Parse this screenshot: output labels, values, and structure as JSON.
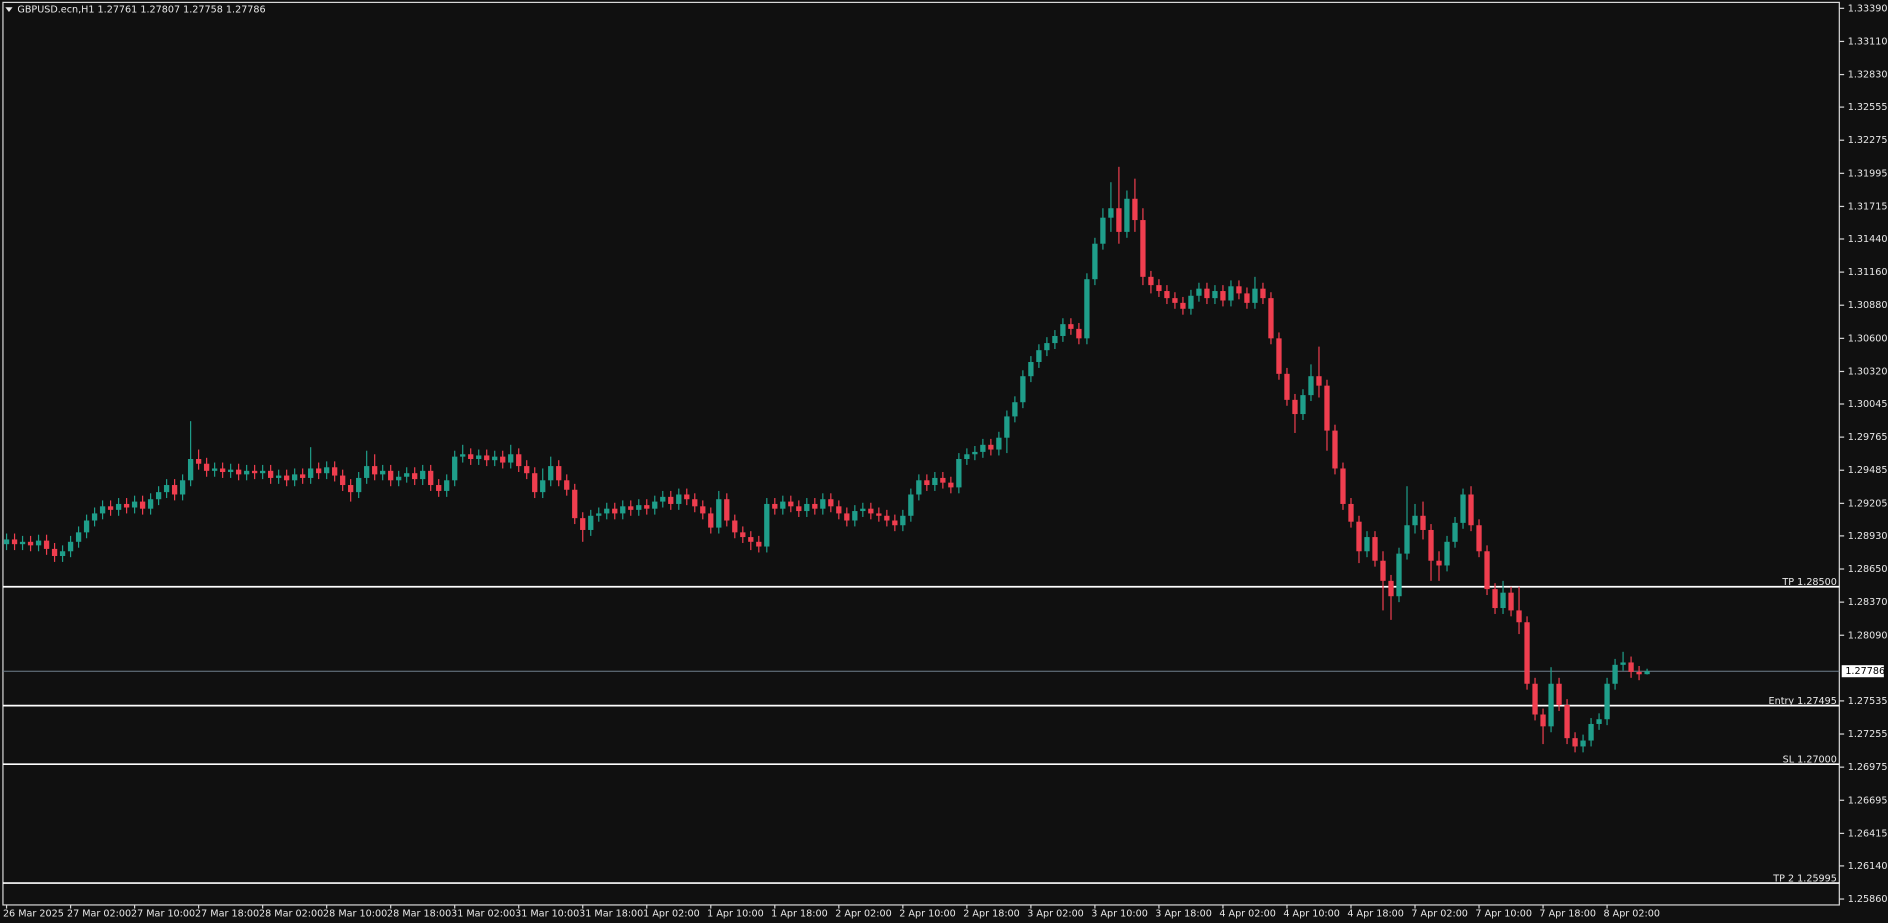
{
  "chart_data": {
    "type": "candlestick",
    "title": "GBPUSD.ecn,H1  1.27761 1.27807 1.27758 1.27786",
    "categories": [
      "26 Mar 2025",
      null,
      null,
      null,
      null,
      null,
      null,
      null,
      "27 Mar 02:00",
      null,
      null,
      null,
      null,
      null,
      null,
      null,
      "27 Mar 10:00",
      null,
      null,
      null,
      null,
      null,
      null,
      null,
      "27 Mar 18:00",
      null,
      null,
      null,
      null,
      null,
      null,
      null,
      "28 Mar 02:00",
      null,
      null,
      null,
      null,
      null,
      null,
      null,
      "28 Mar 10:00",
      null,
      null,
      null,
      null,
      null,
      null,
      null,
      "28 Mar 18:00",
      null,
      null,
      null,
      null,
      null,
      null,
      null,
      "31 Mar 02:00",
      null,
      null,
      null,
      null,
      null,
      null,
      null,
      "31 Mar 10:00",
      null,
      null,
      null,
      null,
      null,
      null,
      null,
      "31 Mar 18:00",
      null,
      null,
      null,
      null,
      null,
      null,
      null,
      "1 Apr 02:00",
      null,
      null,
      null,
      null,
      null,
      null,
      null,
      "1 Apr 10:00",
      null,
      null,
      null,
      null,
      null,
      null,
      null,
      "1 Apr 18:00",
      null,
      null,
      null,
      null,
      null,
      null,
      null,
      "2 Apr 02:00",
      null,
      null,
      null,
      null,
      null,
      null,
      null,
      "2 Apr 10:00",
      null,
      null,
      null,
      null,
      null,
      null,
      null,
      "2 Apr 18:00",
      null,
      null,
      null,
      null,
      null,
      null,
      null,
      "3 Apr 02:00",
      null,
      null,
      null,
      null,
      null,
      null,
      null,
      "3 Apr 10:00",
      null,
      null,
      null,
      null,
      null,
      null,
      null,
      "3 Apr 18:00",
      null,
      null,
      null,
      null,
      null,
      null,
      null,
      "4 Apr 02:00",
      null,
      null,
      null,
      null,
      null,
      null,
      null,
      "4 Apr 10:00",
      null,
      null,
      null,
      null,
      null,
      null,
      null,
      "4 Apr 18:00",
      null,
      null,
      null,
      null,
      null,
      null,
      null,
      "7 Apr 02:00",
      null,
      null,
      null,
      null,
      null,
      null,
      null,
      "7 Apr 10:00",
      null,
      null,
      null,
      null,
      null,
      null,
      null,
      "7 Apr 18:00",
      null,
      null,
      null,
      null,
      null,
      null,
      null,
      "8 Apr 02:00",
      null,
      null,
      null,
      null,
      null
    ],
    "open": [
      1.2886,
      1.289,
      1.2886,
      1.2888,
      1.2885,
      1.2889,
      1.2882,
      1.2876,
      1.288,
      1.2888,
      1.2896,
      1.2906,
      1.2912,
      1.2918,
      1.2915,
      1.292,
      1.2917,
      1.2922,
      1.2916,
      1.2924,
      1.293,
      1.2936,
      1.2928,
      1.294,
      1.2958,
      1.2954,
      1.2948,
      1.295,
      1.2947,
      1.2949,
      1.2945,
      1.2948,
      1.2946,
      1.2948,
      1.2942,
      1.2944,
      1.294,
      1.2945,
      1.2942,
      1.295,
      1.2946,
      1.2951,
      1.2944,
      1.2936,
      1.293,
      1.2942,
      1.2952,
      1.2945,
      1.2948,
      1.294,
      1.2943,
      1.2946,
      1.2941,
      1.2948,
      1.2936,
      1.2931,
      1.294,
      1.296,
      1.2962,
      1.2958,
      1.2961,
      1.2957,
      1.296,
      1.2955,
      1.2962,
      1.2952,
      1.2946,
      1.293,
      1.294,
      1.2952,
      1.294,
      1.2932,
      1.2908,
      1.2898,
      1.291,
      1.2912,
      1.2916,
      1.2912,
      1.2918,
      1.2915,
      1.2919,
      1.2916,
      1.2922,
      1.2926,
      1.292,
      1.2928,
      1.2924,
      1.2918,
      1.2912,
      1.29,
      1.2924,
      1.2906,
      1.2896,
      1.2892,
      1.2888,
      1.2884,
      1.292,
      1.2916,
      1.2922,
      1.2918,
      1.2914,
      1.292,
      1.2916,
      1.2924,
      1.2918,
      1.2912,
      1.2906,
      1.2914,
      1.2916,
      1.2912,
      1.291,
      1.2906,
      1.2902,
      1.291,
      1.2928,
      1.294,
      1.2936,
      1.2942,
      1.2938,
      1.2934,
      1.2958,
      1.2962,
      1.2964,
      1.297,
      1.2966,
      1.2976,
      1.2994,
      1.3006,
      1.3028,
      1.304,
      1.305,
      1.3056,
      1.3062,
      1.3072,
      1.3068,
      1.306,
      1.311,
      1.314,
      1.3162,
      1.317,
      1.315,
      1.3178,
      1.316,
      1.3112,
      1.3105,
      1.31,
      1.3094,
      1.309,
      1.3085,
      1.3096,
      1.3102,
      1.3094,
      1.31,
      1.3092,
      1.3104,
      1.3098,
      1.309,
      1.3102,
      1.3094,
      1.306,
      1.303,
      1.3008,
      1.2996,
      1.3012,
      1.3028,
      1.302,
      1.2982,
      1.295,
      1.292,
      1.2905,
      1.288,
      1.2892,
      1.2872,
      1.2855,
      1.2842,
      1.2878,
      1.2902,
      1.291,
      1.2898,
      1.2872,
      1.2868,
      1.2888,
      1.2904,
      1.2928,
      1.2902,
      1.288,
      1.2848,
      1.2832,
      1.2845,
      1.283,
      1.282,
      1.2768,
      1.2742,
      1.2732,
      1.2768,
      1.275,
      1.2722,
      1.2715,
      1.272,
      1.2734,
      1.2738,
      1.2768,
      1.2784,
      1.2786,
      1.2778,
      1.27761
    ],
    "high": [
      1.2895,
      1.2895,
      1.2893,
      1.2893,
      1.2894,
      1.2894,
      1.2887,
      1.2885,
      1.2893,
      1.2901,
      1.2911,
      1.2917,
      1.2923,
      1.2923,
      1.2925,
      1.2925,
      1.2927,
      1.2927,
      1.2929,
      1.2935,
      1.2941,
      1.2941,
      1.2945,
      1.299,
      1.2966,
      1.2959,
      1.2955,
      1.2955,
      1.2954,
      1.2954,
      1.2953,
      1.2953,
      1.2953,
      1.2953,
      1.2949,
      1.2949,
      1.295,
      1.295,
      1.2968,
      1.2955,
      1.2956,
      1.2956,
      1.2949,
      1.2941,
      1.2947,
      1.2965,
      1.2962,
      1.2953,
      1.2953,
      1.2948,
      1.2951,
      1.2951,
      1.2953,
      1.2953,
      1.2941,
      1.2945,
      1.2965,
      1.297,
      1.2967,
      1.2966,
      1.2966,
      1.2965,
      1.2965,
      1.297,
      1.2967,
      1.2957,
      1.2951,
      1.295,
      1.296,
      1.2957,
      1.2945,
      1.2937,
      1.2913,
      1.2915,
      1.2917,
      1.2921,
      1.2921,
      1.2923,
      1.2923,
      1.2924,
      1.2924,
      1.2927,
      1.2931,
      1.2931,
      1.2933,
      1.2933,
      1.2929,
      1.2923,
      1.2917,
      1.2931,
      1.2929,
      1.2911,
      1.2901,
      1.2897,
      1.2893,
      1.2925,
      1.2925,
      1.2927,
      1.2927,
      1.2923,
      1.2925,
      1.2925,
      1.2929,
      1.2929,
      1.2923,
      1.2917,
      1.2919,
      1.2921,
      1.2921,
      1.2917,
      1.2915,
      1.2911,
      1.2915,
      1.2933,
      1.2945,
      1.2945,
      1.2947,
      1.2947,
      1.2943,
      1.2963,
      1.2967,
      1.2969,
      1.2975,
      1.2975,
      1.2981,
      1.2999,
      1.3011,
      1.3033,
      1.3045,
      1.3055,
      1.3061,
      1.3067,
      1.3077,
      1.3077,
      1.3073,
      1.3115,
      1.3145,
      1.317,
      1.3192,
      1.3205,
      1.3185,
      1.3195,
      1.317,
      1.3117,
      1.311,
      1.3105,
      1.3099,
      1.3095,
      1.3101,
      1.3107,
      1.3107,
      1.3105,
      1.3105,
      1.3109,
      1.3109,
      1.3103,
      1.3112,
      1.3107,
      1.3099,
      1.3065,
      1.3035,
      1.3013,
      1.3017,
      1.3038,
      1.3053,
      1.3025,
      1.2987,
      1.2955,
      1.2925,
      1.291,
      1.2897,
      1.2897,
      1.288,
      1.286,
      1.2883,
      1.2935,
      1.292,
      1.2922,
      1.2903,
      1.288,
      1.2893,
      1.2909,
      1.2933,
      1.2935,
      1.2907,
      1.2885,
      1.2853,
      1.2855,
      1.285,
      1.285,
      1.2825,
      1.2773,
      1.2747,
      1.2782,
      1.2773,
      1.2755,
      1.2727,
      1.2725,
      1.2739,
      1.2743,
      1.2773,
      1.2789,
      1.2795,
      1.2791,
      1.2783,
      1.27807
    ],
    "low": [
      1.2881,
      1.2881,
      1.2881,
      1.288,
      1.288,
      1.2877,
      1.2871,
      1.2871,
      1.2875,
      1.2883,
      1.2891,
      1.2901,
      1.2907,
      1.291,
      1.291,
      1.2912,
      1.2912,
      1.2911,
      1.2911,
      1.2919,
      1.2925,
      1.2923,
      1.2923,
      1.2935,
      1.2949,
      1.2943,
      1.2943,
      1.2942,
      1.2942,
      1.294,
      1.294,
      1.2941,
      1.2941,
      1.2937,
      1.2937,
      1.2935,
      1.2935,
      1.2937,
      1.2937,
      1.2941,
      1.2941,
      1.2939,
      1.2931,
      1.2922,
      1.2925,
      1.2937,
      1.294,
      1.294,
      1.2935,
      1.2935,
      1.2938,
      1.2936,
      1.2936,
      1.2931,
      1.2926,
      1.2926,
      1.2935,
      1.2955,
      1.2953,
      1.2953,
      1.2952,
      1.2952,
      1.295,
      1.295,
      1.2947,
      1.2941,
      1.2925,
      1.2925,
      1.2935,
      1.2935,
      1.2927,
      1.2903,
      1.2888,
      1.2893,
      1.2905,
      1.2907,
      1.2907,
      1.2907,
      1.291,
      1.291,
      1.2911,
      1.2911,
      1.2917,
      1.2915,
      1.2915,
      1.2919,
      1.2913,
      1.2907,
      1.2895,
      1.2895,
      1.2901,
      1.2891,
      1.2887,
      1.2881,
      1.2879,
      1.2879,
      1.2911,
      1.2911,
      1.2913,
      1.2909,
      1.2909,
      1.2911,
      1.2911,
      1.2913,
      1.2907,
      1.2901,
      1.2901,
      1.2909,
      1.2907,
      1.2905,
      1.2901,
      1.2897,
      1.2897,
      1.2905,
      1.2923,
      1.2931,
      1.2931,
      1.2933,
      1.2929,
      1.2929,
      1.2953,
      1.2957,
      1.2959,
      1.2961,
      1.2961,
      1.2963,
      1.2989,
      1.3001,
      1.3023,
      1.3035,
      1.3045,
      1.3051,
      1.3057,
      1.3063,
      1.3055,
      1.3055,
      1.3105,
      1.3135,
      1.315,
      1.314,
      1.3145,
      1.315,
      1.3105,
      1.3098,
      1.3095,
      1.3089,
      1.3085,
      1.308,
      1.308,
      1.3091,
      1.3089,
      1.3089,
      1.3087,
      1.3087,
      1.3093,
      1.3085,
      1.3085,
      1.3089,
      1.3055,
      1.3025,
      1.3003,
      1.298,
      1.2991,
      1.3007,
      1.301,
      1.2965,
      1.2945,
      1.2915,
      1.29,
      1.287,
      1.2875,
      1.2867,
      1.283,
      1.2822,
      1.2837,
      1.2873,
      1.2895,
      1.289,
      1.2855,
      1.2855,
      1.2863,
      1.2883,
      1.2899,
      1.2897,
      1.2875,
      1.2843,
      1.2827,
      1.2827,
      1.2825,
      1.281,
      1.2763,
      1.2737,
      1.2717,
      1.2727,
      1.2745,
      1.2717,
      1.271,
      1.271,
      1.2715,
      1.2729,
      1.2733,
      1.2763,
      1.2779,
      1.2773,
      1.2771,
      1.27758
    ],
    "close": [
      1.289,
      1.2886,
      1.2888,
      1.2885,
      1.2889,
      1.2882,
      1.2876,
      1.288,
      1.2888,
      1.2896,
      1.2906,
      1.2912,
      1.2918,
      1.2915,
      1.292,
      1.2917,
      1.2922,
      1.2916,
      1.2924,
      1.293,
      1.2936,
      1.2928,
      1.294,
      1.2958,
      1.2954,
      1.2948,
      1.295,
      1.2947,
      1.2949,
      1.2945,
      1.2948,
      1.2946,
      1.2948,
      1.2942,
      1.2944,
      1.294,
      1.2945,
      1.2942,
      1.295,
      1.2946,
      1.2951,
      1.2944,
      1.2936,
      1.293,
      1.2942,
      1.2952,
      1.2945,
      1.2948,
      1.294,
      1.2943,
      1.2946,
      1.2941,
      1.2948,
      1.2936,
      1.2931,
      1.294,
      1.296,
      1.2962,
      1.2958,
      1.2961,
      1.2957,
      1.296,
      1.2955,
      1.2962,
      1.2952,
      1.2946,
      1.293,
      1.294,
      1.2952,
      1.294,
      1.2932,
      1.2908,
      1.2898,
      1.291,
      1.2912,
      1.2916,
      1.2912,
      1.2918,
      1.2915,
      1.2919,
      1.2916,
      1.2922,
      1.2926,
      1.292,
      1.2928,
      1.2924,
      1.2918,
      1.2912,
      1.29,
      1.2924,
      1.2906,
      1.2896,
      1.2892,
      1.2888,
      1.2884,
      1.292,
      1.2916,
      1.2922,
      1.2918,
      1.2914,
      1.292,
      1.2916,
      1.2924,
      1.2918,
      1.2912,
      1.2906,
      1.2914,
      1.2916,
      1.2912,
      1.291,
      1.2906,
      1.2902,
      1.291,
      1.2928,
      1.294,
      1.2936,
      1.2942,
      1.2938,
      1.2934,
      1.2958,
      1.2962,
      1.2964,
      1.297,
      1.2966,
      1.2976,
      1.2994,
      1.3006,
      1.3028,
      1.304,
      1.305,
      1.3056,
      1.3062,
      1.3072,
      1.3068,
      1.306,
      1.311,
      1.314,
      1.3162,
      1.317,
      1.315,
      1.3178,
      1.316,
      1.3112,
      1.3105,
      1.31,
      1.3094,
      1.309,
      1.3085,
      1.3096,
      1.3102,
      1.3094,
      1.31,
      1.3092,
      1.3104,
      1.3098,
      1.309,
      1.3102,
      1.3094,
      1.306,
      1.303,
      1.3008,
      1.2996,
      1.3012,
      1.3028,
      1.302,
      1.2982,
      1.295,
      1.292,
      1.2905,
      1.288,
      1.2892,
      1.2872,
      1.2855,
      1.2842,
      1.2878,
      1.2902,
      1.291,
      1.2898,
      1.2872,
      1.2868,
      1.2888,
      1.2904,
      1.2928,
      1.2902,
      1.288,
      1.2848,
      1.2832,
      1.2845,
      1.283,
      1.282,
      1.2768,
      1.2742,
      1.2732,
      1.2768,
      1.275,
      1.2722,
      1.2715,
      1.272,
      1.2734,
      1.2738,
      1.2768,
      1.2784,
      1.2786,
      1.2778,
      1.2776,
      1.27786
    ],
    "up_color": "#1f9e8a",
    "down_color": "#ef3e4f",
    "ylim": [
      1.2581,
      1.3344
    ],
    "yticks": [
      {
        "value": 1.3339,
        "label": "1.33390"
      },
      {
        "value": 1.3311,
        "label": "1.33110"
      },
      {
        "value": 1.3283,
        "label": "1.32830"
      },
      1.32555,
      1.32275,
      1.31995,
      1.31715,
      {
        "value": 1.3144,
        "label": "1.31440"
      },
      {
        "value": 1.3116,
        "label": "1.31160"
      },
      {
        "value": 1.3088,
        "label": "1.30880"
      },
      {
        "value": 1.306,
        "label": "1.30600"
      },
      {
        "value": 1.3032,
        "label": "1.30320"
      },
      1.30045,
      1.29765,
      1.29485,
      1.29205,
      {
        "value": 1.2893,
        "label": "1.28930"
      },
      {
        "value": 1.2865,
        "label": "1.28650"
      },
      {
        "value": 1.2837,
        "label": "1.28370"
      },
      {
        "value": 1.2809,
        "label": "1.28090"
      },
      1.27535,
      1.27255,
      1.26975,
      1.26695,
      1.26415,
      {
        "value": 1.2614,
        "label": "1.26140"
      },
      {
        "value": 1.2586,
        "label": "1.25860"
      }
    ],
    "levels": [
      {
        "value": 1.285,
        "label": "TP 1.28500"
      },
      {
        "value": 1.27495,
        "label": "Entry 1.27495"
      },
      {
        "value": 1.27,
        "label": "SL 1.27000"
      },
      {
        "value": 1.25995,
        "label": "TP 2 1.25995"
      }
    ],
    "current_price": {
      "value": 1.27786,
      "label": "1.27786"
    },
    "grid": false
  }
}
